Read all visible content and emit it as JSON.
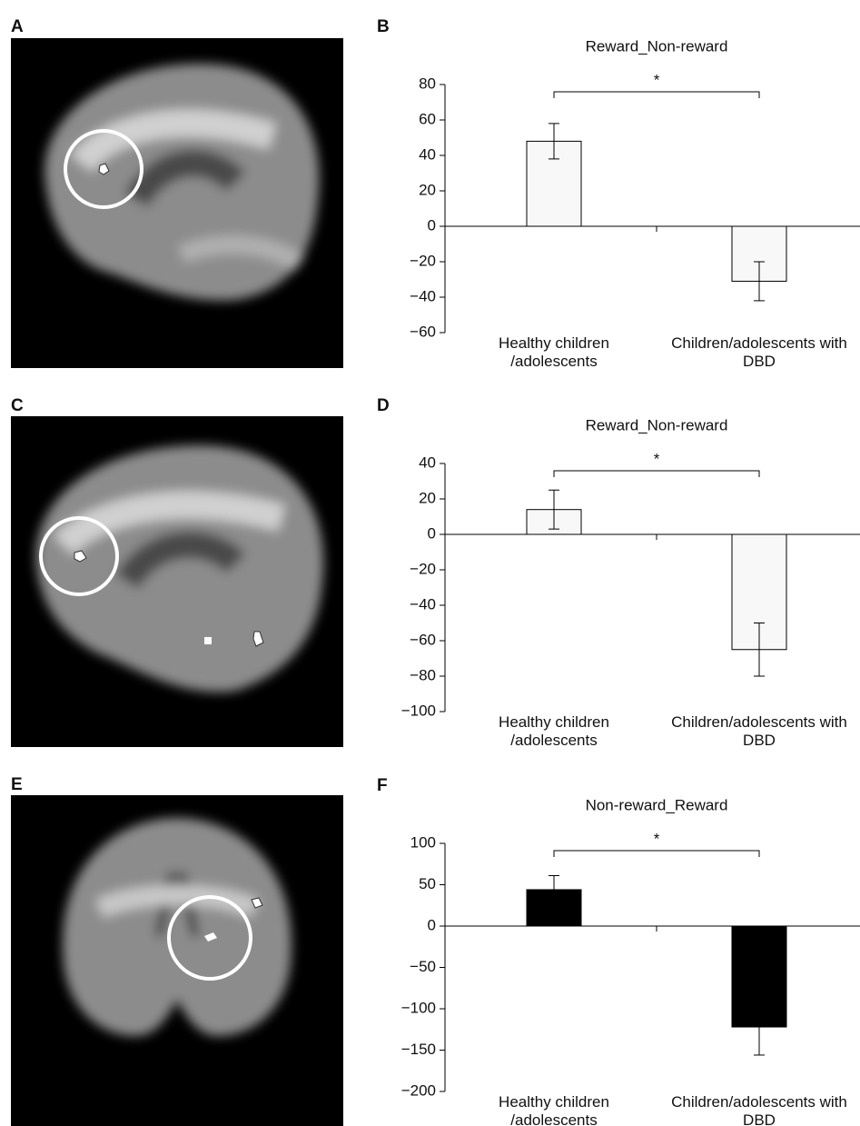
{
  "image_panels": [
    {
      "label": "A"
    },
    {
      "label": "C"
    },
    {
      "label": "E"
    }
  ],
  "chart_data": [
    {
      "type": "bar",
      "panel": "B",
      "title": "Reward_Non-reward",
      "categories": [
        "Healthy children /adolescents",
        "Children/adolescents with DBD"
      ],
      "values": [
        48,
        -31
      ],
      "errors": [
        10,
        11
      ],
      "color": "#f8f8f8",
      "annotation": "*",
      "ylim": [
        -60,
        80
      ],
      "yticks": [
        {
          "value": -60,
          "label": "−60"
        },
        {
          "value": -40,
          "label": "−40"
        },
        {
          "value": -20,
          "label": "−20"
        },
        0,
        20,
        40,
        60,
        80
      ]
    },
    {
      "type": "bar",
      "panel": "D",
      "title": "Reward_Non-reward",
      "categories": [
        "Healthy children /adolescents",
        "Children/adolescents with DBD"
      ],
      "values": [
        14,
        -65
      ],
      "errors": [
        11,
        15
      ],
      "color": "#f8f8f8",
      "annotation": "*",
      "ylim": [
        -100,
        40
      ],
      "yticks": [
        {
          "value": -100,
          "label": "−100"
        },
        {
          "value": -80,
          "label": "−80"
        },
        {
          "value": -60,
          "label": "−60"
        },
        {
          "value": -40,
          "label": "−40"
        },
        {
          "value": -20,
          "label": "−20"
        },
        0,
        20,
        40
      ]
    },
    {
      "type": "bar",
      "panel": "F",
      "title": "Non-reward_Reward",
      "categories": [
        "Healthy children /adolescents",
        "Children/adolescents with DBD"
      ],
      "values": [
        44,
        -122
      ],
      "errors": [
        17,
        34
      ],
      "color": "#000000",
      "annotation": "*",
      "ylim": [
        -200,
        100
      ],
      "yticks": [
        {
          "value": -200,
          "label": "−200"
        },
        {
          "value": -150,
          "label": "−150"
        },
        {
          "value": -100,
          "label": "−100"
        },
        {
          "value": -50,
          "label": "−50"
        },
        0,
        50,
        100
      ]
    }
  ]
}
